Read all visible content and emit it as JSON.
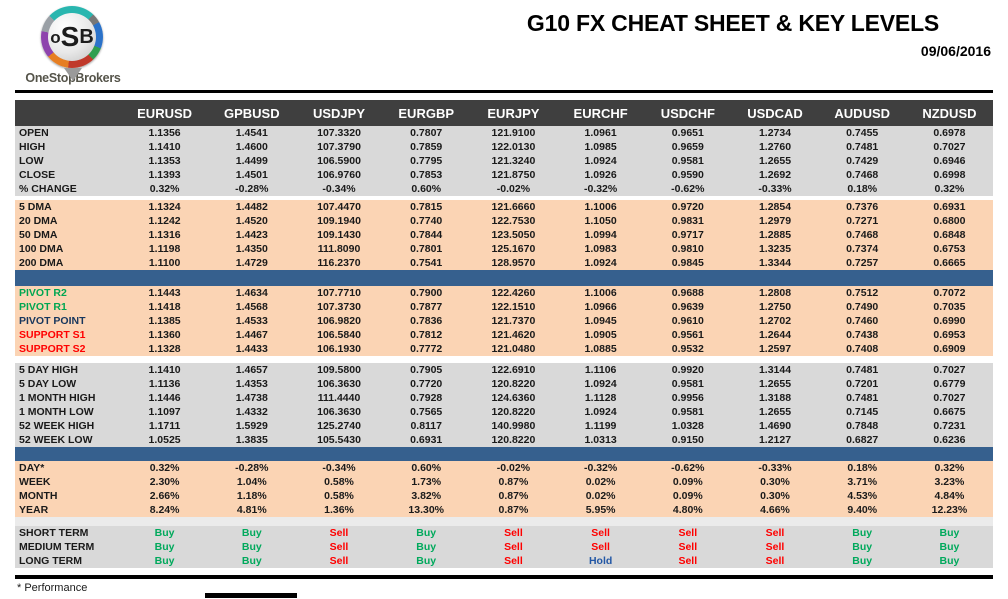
{
  "logo": {
    "letter_o": "o",
    "letter_s": "S",
    "letter_b": "B",
    "name": "OneStopBrokers"
  },
  "header": {
    "title": "G10 FX CHEAT SHEET & KEY LEVELS",
    "date": "09/06/2016"
  },
  "colors": {
    "header_bar": "#3f3f3f",
    "block_gray": "#d9d9d9",
    "block_peach": "#fbd4b4",
    "separator_blue": "#36608e",
    "buy_green": "#00a95c",
    "sell_red": "#ff0000",
    "hold_blue": "#2257a5",
    "pivot_green": "#00a651",
    "support_red": "#ff0000",
    "pivot_point_navy": "#17365d"
  },
  "table": {
    "columns": [
      "EURUSD",
      "GPBUSD",
      "USDJPY",
      "EURGBP",
      "EURJPY",
      "EURCHF",
      "USDCHF",
      "USDCAD",
      "AUDUSD",
      "NZDUSD"
    ],
    "blocks": [
      {
        "name": "ohlc",
        "bg": "gray",
        "rows": [
          {
            "label": "OPEN",
            "values": [
              "1.1356",
              "1.4541",
              "107.3320",
              "0.7807",
              "121.9100",
              "1.0961",
              "0.9651",
              "1.2734",
              "0.7455",
              "0.6978"
            ]
          },
          {
            "label": "HIGH",
            "values": [
              "1.1410",
              "1.4600",
              "107.3790",
              "0.7859",
              "122.0130",
              "1.0985",
              "0.9659",
              "1.2760",
              "0.7481",
              "0.7027"
            ]
          },
          {
            "label": "LOW",
            "values": [
              "1.1353",
              "1.4499",
              "106.5900",
              "0.7795",
              "121.3240",
              "1.0924",
              "0.9581",
              "1.2655",
              "0.7429",
              "0.6946"
            ]
          },
          {
            "label": "CLOSE",
            "values": [
              "1.1393",
              "1.4501",
              "106.9760",
              "0.7853",
              "121.8750",
              "1.0926",
              "0.9590",
              "1.2692",
              "0.7468",
              "0.6998"
            ]
          },
          {
            "label": "% CHANGE",
            "values": [
              "0.32%",
              "-0.28%",
              "-0.34%",
              "0.60%",
              "-0.02%",
              "-0.32%",
              "-0.62%",
              "-0.33%",
              "0.18%",
              "0.32%"
            ]
          }
        ]
      },
      {
        "name": "gap-1",
        "type": "gap",
        "bg": "white",
        "height": 4
      },
      {
        "name": "dma",
        "bg": "peach",
        "rows": [
          {
            "label": "5 DMA",
            "values": [
              "1.1324",
              "1.4482",
              "107.4470",
              "0.7815",
              "121.6660",
              "1.1006",
              "0.9720",
              "1.2854",
              "0.7376",
              "0.6931"
            ]
          },
          {
            "label": "20 DMA",
            "values": [
              "1.1242",
              "1.4520",
              "109.1940",
              "0.7740",
              "122.7530",
              "1.1050",
              "0.9831",
              "1.2979",
              "0.7271",
              "0.6800"
            ]
          },
          {
            "label": "50 DMA",
            "values": [
              "1.1316",
              "1.4423",
              "109.1430",
              "0.7844",
              "123.5050",
              "1.0994",
              "0.9717",
              "1.2885",
              "0.7468",
              "0.6848"
            ]
          },
          {
            "label": "100 DMA",
            "values": [
              "1.1198",
              "1.4350",
              "111.8090",
              "0.7801",
              "125.1670",
              "1.0983",
              "0.9810",
              "1.3235",
              "0.7374",
              "0.6753"
            ]
          },
          {
            "label": "200 DMA",
            "values": [
              "1.1100",
              "1.4729",
              "116.2370",
              "0.7541",
              "128.9570",
              "1.0924",
              "0.9845",
              "1.3344",
              "0.7257",
              "0.6665"
            ]
          }
        ]
      },
      {
        "name": "separator-1",
        "type": "separator",
        "bg": "blue",
        "height": 16
      },
      {
        "name": "pivots",
        "bg": "peach",
        "rows": [
          {
            "label": "PIVOT R2",
            "color": "green",
            "values": [
              "1.1443",
              "1.4634",
              "107.7710",
              "0.7900",
              "122.4260",
              "1.1006",
              "0.9688",
              "1.2808",
              "0.7512",
              "0.7072"
            ]
          },
          {
            "label": "PIVOT R1",
            "color": "green",
            "values": [
              "1.1418",
              "1.4568",
              "107.3730",
              "0.7877",
              "122.1510",
              "1.0966",
              "0.9639",
              "1.2750",
              "0.7490",
              "0.7035"
            ]
          },
          {
            "label": "PIVOT POINT",
            "color": "navy",
            "values": [
              "1.1385",
              "1.4533",
              "106.9820",
              "0.7836",
              "121.7370",
              "1.0945",
              "0.9610",
              "1.2702",
              "0.7460",
              "0.6990"
            ]
          },
          {
            "label": "SUPPORT S1",
            "color": "red",
            "values": [
              "1.1360",
              "1.4467",
              "106.5840",
              "0.7812",
              "121.4620",
              "1.0905",
              "0.9561",
              "1.2644",
              "0.7438",
              "0.6953"
            ]
          },
          {
            "label": "SUPPORT S2",
            "color": "red",
            "values": [
              "1.1328",
              "1.4433",
              "106.1930",
              "0.7772",
              "121.0480",
              "1.0885",
              "0.9532",
              "1.2597",
              "0.7408",
              "0.6909"
            ]
          }
        ]
      },
      {
        "name": "gap-2",
        "type": "gap",
        "bg": "white",
        "height": 7
      },
      {
        "name": "ranges",
        "bg": "gray",
        "rows": [
          {
            "label": "5 DAY HIGH",
            "values": [
              "1.1410",
              "1.4657",
              "109.5800",
              "0.7905",
              "122.6910",
              "1.1106",
              "0.9920",
              "1.3144",
              "0.7481",
              "0.7027"
            ]
          },
          {
            "label": "5 DAY LOW",
            "values": [
              "1.1136",
              "1.4353",
              "106.3630",
              "0.7720",
              "120.8220",
              "1.0924",
              "0.9581",
              "1.2655",
              "0.7201",
              "0.6779"
            ]
          },
          {
            "label": "1 MONTH HIGH",
            "values": [
              "1.1446",
              "1.4738",
              "111.4440",
              "0.7928",
              "124.6360",
              "1.1128",
              "0.9956",
              "1.3188",
              "0.7481",
              "0.7027"
            ]
          },
          {
            "label": "1 MONTH LOW",
            "values": [
              "1.1097",
              "1.4332",
              "106.3630",
              "0.7565",
              "120.8220",
              "1.0924",
              "0.9581",
              "1.2655",
              "0.7145",
              "0.6675"
            ]
          },
          {
            "label": "52 WEEK HIGH",
            "values": [
              "1.1711",
              "1.5929",
              "125.2740",
              "0.8117",
              "140.9980",
              "1.1199",
              "1.0328",
              "1.4690",
              "0.7848",
              "0.7231"
            ]
          },
          {
            "label": "52 WEEK LOW",
            "values": [
              "1.0525",
              "1.3835",
              "105.5430",
              "0.6931",
              "120.8220",
              "1.0313",
              "0.9150",
              "1.2127",
              "0.6827",
              "0.6236"
            ]
          }
        ]
      },
      {
        "name": "separator-2",
        "type": "separator",
        "bg": "blue",
        "height": 14
      },
      {
        "name": "performance",
        "bg": "peach",
        "rows": [
          {
            "label": "DAY*",
            "values": [
              "0.32%",
              "-0.28%",
              "-0.34%",
              "0.60%",
              "-0.02%",
              "-0.32%",
              "-0.62%",
              "-0.33%",
              "0.18%",
              "0.32%"
            ]
          },
          {
            "label": "WEEK",
            "values": [
              "2.30%",
              "1.04%",
              "0.58%",
              "1.73%",
              "0.87%",
              "0.02%",
              "0.09%",
              "0.30%",
              "3.71%",
              "3.23%"
            ]
          },
          {
            "label": "MONTH",
            "values": [
              "2.66%",
              "1.18%",
              "0.58%",
              "3.82%",
              "0.87%",
              "0.02%",
              "0.09%",
              "0.30%",
              "4.53%",
              "4.84%"
            ]
          },
          {
            "label": "YEAR",
            "values": [
              "8.24%",
              "4.81%",
              "1.36%",
              "13.30%",
              "0.87%",
              "5.95%",
              "4.80%",
              "4.66%",
              "9.40%",
              "12.23%"
            ]
          }
        ]
      },
      {
        "name": "gap-3",
        "type": "gap",
        "bg": "lightgray",
        "height": 9
      },
      {
        "name": "signals",
        "bg": "gray",
        "signal_colors": true,
        "rows": [
          {
            "label": "SHORT TERM",
            "values": [
              "Buy",
              "Buy",
              "Sell",
              "Buy",
              "Sell",
              "Sell",
              "Sell",
              "Sell",
              "Buy",
              "Buy"
            ]
          },
          {
            "label": "MEDIUM TERM",
            "values": [
              "Buy",
              "Buy",
              "Sell",
              "Buy",
              "Sell",
              "Sell",
              "Sell",
              "Sell",
              "Buy",
              "Buy"
            ]
          },
          {
            "label": "LONG TERM",
            "values": [
              "Buy",
              "Buy",
              "Sell",
              "Buy",
              "Sell",
              "Hold",
              "Sell",
              "Sell",
              "Buy",
              "Buy"
            ]
          }
        ]
      }
    ]
  },
  "footnote": "* Performance"
}
